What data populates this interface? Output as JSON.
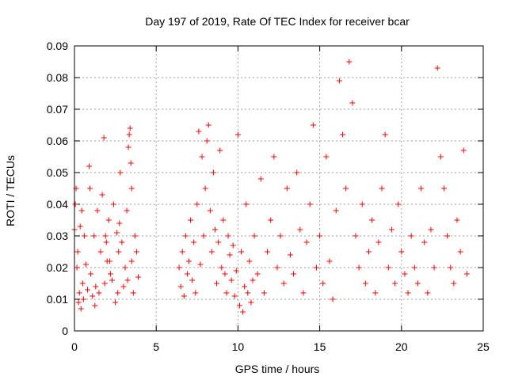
{
  "chart_data": {
    "type": "scatter",
    "title": "Day 197 of 2019, Rate Of TEC Index for receiver bcar",
    "xlabel": "GPS time / hours",
    "ylabel": "ROTI / TECUs",
    "xlim": [
      0,
      25
    ],
    "ylim": [
      0,
      0.09
    ],
    "x_ticks": [
      0,
      5,
      10,
      15,
      20,
      25
    ],
    "y_ticks": [
      0,
      0.01,
      0.02,
      0.03,
      0.04,
      0.05,
      0.06,
      0.07,
      0.08,
      0.09
    ],
    "grid": true,
    "marker": "+",
    "color": "#ff0000",
    "series": [
      {
        "x": [
          0.0,
          0.05,
          0.1,
          0.2,
          0.3,
          0.4,
          0.5,
          0.6,
          0.7,
          0.8,
          0.9,
          1.0,
          1.1,
          1.2,
          1.3,
          1.4,
          1.5,
          1.6,
          1.7,
          1.8,
          1.9,
          2.0,
          2.1,
          2.2,
          2.3,
          2.4,
          2.5,
          2.6,
          2.7,
          2.8,
          2.9,
          3.0,
          3.1,
          3.2,
          3.3,
          3.4,
          3.5,
          3.6,
          3.7,
          3.8,
          3.9,
          0.15,
          0.35,
          0.55,
          0.95,
          1.25,
          1.85,
          1.95,
          2.65,
          3.35,
          3.45,
          3.5,
          0.25,
          0.45,
          2.15,
          2.75,
          3.25
        ],
        "y": [
          0.032,
          0.04,
          0.045,
          0.025,
          0.012,
          0.007,
          0.015,
          0.03,
          0.021,
          0.013,
          0.052,
          0.018,
          0.011,
          0.03,
          0.014,
          0.038,
          0.012,
          0.025,
          0.043,
          0.061,
          0.03,
          0.022,
          0.035,
          0.018,
          0.016,
          0.04,
          0.009,
          0.031,
          0.025,
          0.05,
          0.028,
          0.014,
          0.02,
          0.038,
          0.058,
          0.064,
          0.022,
          0.012,
          0.03,
          0.025,
          0.017,
          0.02,
          0.033,
          0.01,
          0.045,
          0.008,
          0.015,
          0.028,
          0.012,
          0.062,
          0.053,
          0.045,
          0.009,
          0.038,
          0.022,
          0.034,
          0.016
        ]
      },
      {
        "x": [
          6.4,
          6.5,
          6.6,
          6.7,
          6.8,
          6.9,
          7.0,
          7.1,
          7.2,
          7.3,
          7.4,
          7.5,
          7.6,
          7.7,
          7.8,
          7.9,
          8.0,
          8.1,
          8.2,
          8.3,
          8.4,
          8.5,
          8.6,
          8.7,
          8.8,
          8.9,
          9.0,
          9.1,
          9.2,
          9.3,
          9.4,
          9.5,
          9.6,
          9.7,
          9.8,
          9.9,
          10.0,
          10.1,
          10.2,
          10.3,
          10.4,
          10.5,
          10.6,
          10.7,
          10.8,
          10.9,
          11.0,
          11.2,
          11.4,
          11.6,
          11.8,
          12.0,
          12.2,
          12.4,
          12.6,
          12.8,
          13.0,
          13.2,
          13.4,
          13.6,
          13.8,
          14.0,
          14.2,
          14.4,
          14.6,
          14.8,
          15.0,
          15.2,
          15.4,
          15.6,
          15.8,
          16.0,
          16.2,
          16.4,
          16.6,
          16.8,
          17.0,
          17.2,
          17.4,
          17.6,
          17.8,
          18.0,
          18.2,
          18.4,
          18.6,
          18.8,
          19.0,
          19.2,
          19.4,
          19.6,
          19.8,
          20.0,
          20.2,
          20.4,
          20.6,
          20.8,
          21.0,
          21.2,
          21.4,
          21.6,
          21.8,
          22.0,
          22.2,
          22.4,
          22.6,
          22.8,
          23.0,
          23.2,
          23.4,
          23.6,
          23.8,
          24.0
        ],
        "y": [
          0.02,
          0.014,
          0.025,
          0.011,
          0.03,
          0.018,
          0.022,
          0.035,
          0.016,
          0.028,
          0.012,
          0.04,
          0.063,
          0.021,
          0.055,
          0.03,
          0.045,
          0.06,
          0.065,
          0.038,
          0.025,
          0.05,
          0.032,
          0.015,
          0.028,
          0.057,
          0.02,
          0.035,
          0.018,
          0.012,
          0.03,
          0.024,
          0.016,
          0.027,
          0.011,
          0.019,
          0.062,
          0.008,
          0.025,
          0.006,
          0.014,
          0.04,
          0.012,
          0.022,
          0.009,
          0.016,
          0.03,
          0.018,
          0.048,
          0.012,
          0.025,
          0.035,
          0.055,
          0.02,
          0.03,
          0.015,
          0.045,
          0.024,
          0.018,
          0.05,
          0.032,
          0.012,
          0.028,
          0.04,
          0.065,
          0.02,
          0.03,
          0.015,
          0.055,
          0.022,
          0.01,
          0.038,
          0.079,
          0.062,
          0.045,
          0.085,
          0.072,
          0.03,
          0.02,
          0.04,
          0.015,
          0.025,
          0.035,
          0.012,
          0.028,
          0.045,
          0.062,
          0.02,
          0.032,
          0.015,
          0.04,
          0.025,
          0.018,
          0.012,
          0.03,
          0.02,
          0.015,
          0.045,
          0.028,
          0.012,
          0.032,
          0.02,
          0.083,
          0.055,
          0.045,
          0.03,
          0.02,
          0.015,
          0.035,
          0.025,
          0.057,
          0.018
        ]
      }
    ]
  }
}
